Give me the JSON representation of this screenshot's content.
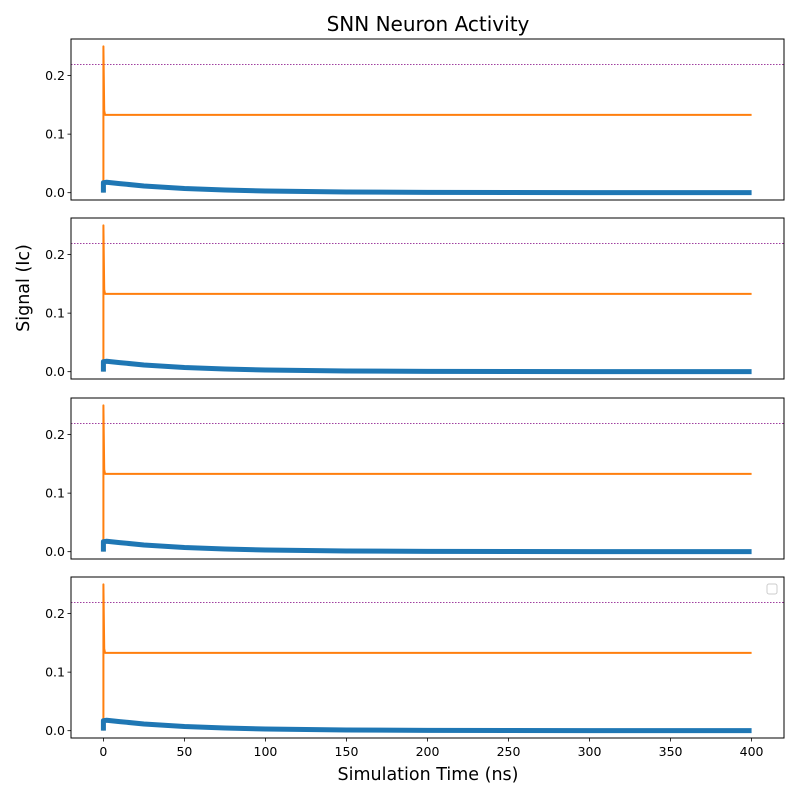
{
  "chart_data": {
    "type": "line",
    "title": "SNN Neuron Activity",
    "xlabel": "Simulation Time (ns)",
    "ylabel": "Signal (Ic)",
    "xlim": [
      -20,
      420
    ],
    "ylim": [
      -0.0125,
      0.2625
    ],
    "xticks": [
      0,
      50,
      100,
      150,
      200,
      250,
      300,
      350,
      400
    ],
    "yticks": [
      0.0,
      0.1,
      0.2
    ],
    "ytick_labels": [
      "0.0",
      "0.1",
      "0.2"
    ],
    "grid": false,
    "legend": {
      "placement": "upper right",
      "entries": []
    },
    "colors": {
      "series_blue": "#1f77b4",
      "series_orange": "#ff7f0e",
      "threshold": "#800080"
    },
    "panels": [
      {
        "threshold": 0.2192,
        "series": [
          {
            "color": "#ff7f0e",
            "style": "thin",
            "x": [
              0,
              0,
              0.5,
              1,
              2,
              5,
              50,
              100,
              200,
              300,
              400
            ],
            "y": [
              0.0,
              0.25,
              0.14,
              0.133,
              0.133,
              0.133,
              0.133,
              0.133,
              0.133,
              0.133,
              0.133
            ]
          },
          {
            "color": "#1f77b4",
            "style": "thick",
            "x": [
              0,
              0,
              2,
              10,
              25,
              50,
              75,
              100,
              150,
              200,
              250,
              300,
              400
            ],
            "y": [
              0.0,
              0.017,
              0.0178,
              0.0155,
              0.0115,
              0.0072,
              0.0045,
              0.0028,
              0.0012,
              0.0005,
              0.0002,
              0.0001,
              0.0
            ]
          }
        ]
      },
      {
        "threshold": 0.2192,
        "series": [
          {
            "color": "#ff7f0e",
            "style": "thin",
            "x": [
              0,
              0,
              0.5,
              1,
              2,
              5,
              50,
              100,
              200,
              300,
              400
            ],
            "y": [
              0.0,
              0.25,
              0.14,
              0.133,
              0.133,
              0.133,
              0.133,
              0.133,
              0.133,
              0.133,
              0.133
            ]
          },
          {
            "color": "#1f77b4",
            "style": "thick",
            "x": [
              0,
              0,
              2,
              10,
              25,
              50,
              75,
              100,
              150,
              200,
              250,
              300,
              400
            ],
            "y": [
              0.0,
              0.017,
              0.0178,
              0.0155,
              0.0115,
              0.0072,
              0.0045,
              0.0028,
              0.0012,
              0.0005,
              0.0002,
              0.0001,
              0.0
            ]
          }
        ]
      },
      {
        "threshold": 0.2192,
        "series": [
          {
            "color": "#ff7f0e",
            "style": "thin",
            "x": [
              0,
              0,
              0.5,
              1,
              2,
              5,
              50,
              100,
              200,
              300,
              400
            ],
            "y": [
              0.0,
              0.25,
              0.14,
              0.133,
              0.133,
              0.133,
              0.133,
              0.133,
              0.133,
              0.133,
              0.133
            ]
          },
          {
            "color": "#1f77b4",
            "style": "thick",
            "x": [
              0,
              0,
              2,
              10,
              25,
              50,
              75,
              100,
              150,
              200,
              250,
              300,
              400
            ],
            "y": [
              0.0,
              0.017,
              0.0178,
              0.0155,
              0.0115,
              0.0072,
              0.0045,
              0.0028,
              0.0012,
              0.0005,
              0.0002,
              0.0001,
              0.0
            ]
          }
        ]
      },
      {
        "threshold": 0.2192,
        "series": [
          {
            "color": "#ff7f0e",
            "style": "thin",
            "x": [
              0,
              0,
              0.5,
              1,
              2,
              5,
              50,
              100,
              200,
              300,
              400
            ],
            "y": [
              0.0,
              0.25,
              0.14,
              0.133,
              0.133,
              0.133,
              0.133,
              0.133,
              0.133,
              0.133,
              0.133
            ]
          },
          {
            "color": "#1f77b4",
            "style": "thick",
            "x": [
              0,
              0,
              2,
              10,
              25,
              50,
              75,
              100,
              150,
              200,
              250,
              300,
              400
            ],
            "y": [
              0.0,
              0.017,
              0.0178,
              0.0155,
              0.0115,
              0.0072,
              0.0045,
              0.0028,
              0.0012,
              0.0005,
              0.0002,
              0.0001,
              0.0
            ]
          }
        ]
      }
    ]
  }
}
